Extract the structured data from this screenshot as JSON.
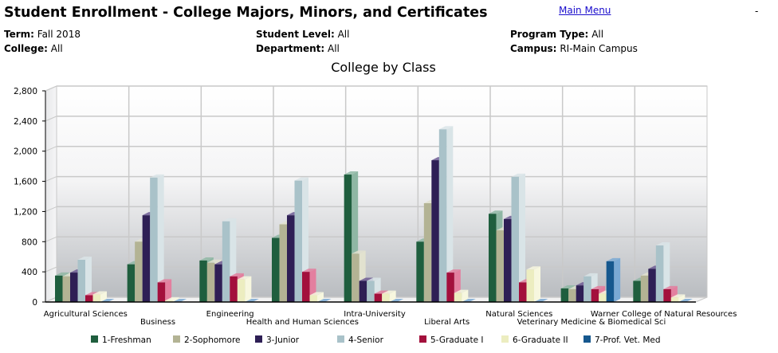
{
  "header": {
    "title": "Student Enrollment - College Majors, Minors, and Certificates",
    "main_menu_label": "Main Menu",
    "dash": "-"
  },
  "filters": [
    {
      "label": "Term:",
      "value": "Fall 2018"
    },
    {
      "label": "College:",
      "value": "All"
    },
    {
      "label": "Student Level:",
      "value": "All"
    },
    {
      "label": "Department:",
      "value": "All"
    },
    {
      "label": "Program Type:",
      "value": "All"
    },
    {
      "label": "Campus:",
      "value": "RI-Main Campus"
    }
  ],
  "colors": {
    "series": [
      "#1f5e3e",
      "#b3b394",
      "#2e1f55",
      "#a9c2c9",
      "#a3103c",
      "#ecedc0",
      "#16588e"
    ],
    "series_side": [
      "#8fb7a4",
      "#e2e2cf",
      "#6d5c94",
      "#d9e4e7",
      "#e37f9f",
      "#f7f7df",
      "#7aa9d4"
    ]
  },
  "chart_data": {
    "type": "bar",
    "title": "College by Class",
    "xlabel": "",
    "ylabel": "",
    "ylim": [
      0,
      2800
    ],
    "yticks": [
      0,
      400,
      800,
      1200,
      1600,
      2000,
      2400,
      2800
    ],
    "ytick_labels": [
      "0",
      "400",
      "800",
      "1,200",
      "1,600",
      "2,000",
      "2,400",
      "2,800"
    ],
    "grid": true,
    "legend_position": "bottom",
    "categories": [
      "Agricultural Sciences",
      "Business",
      "Engineering",
      "Health and Human Sciences",
      "Intra-University",
      "Liberal Arts",
      "Natural Sciences",
      "Veterinary Medicine & Biomedical Sci",
      "Warner College of Natural Resources"
    ],
    "series": [
      {
        "name": "1-Freshman",
        "values": [
          350,
          500,
          550,
          850,
          1690,
          800,
          1170,
          180,
          280
        ]
      },
      {
        "name": "2-Sophomore",
        "values": [
          340,
          800,
          520,
          1030,
          640,
          1310,
          950,
          170,
          350
        ]
      },
      {
        "name": "3-Junior",
        "values": [
          390,
          1150,
          500,
          1150,
          280,
          1880,
          1100,
          220,
          440
        ]
      },
      {
        "name": "4-Senior",
        "values": [
          560,
          1650,
          1070,
          1610,
          280,
          2290,
          1660,
          340,
          750
        ]
      },
      {
        "name": "5-Graduate I",
        "values": [
          90,
          260,
          340,
          400,
          110,
          390,
          260,
          170,
          170
        ]
      },
      {
        "name": "6-Graduate II",
        "values": [
          100,
          20,
          300,
          90,
          110,
          120,
          430,
          110,
          60
        ]
      },
      {
        "name": "7-Prof. Vet. Med",
        "values": [
          0,
          0,
          0,
          0,
          0,
          0,
          0,
          540,
          0
        ]
      }
    ]
  }
}
